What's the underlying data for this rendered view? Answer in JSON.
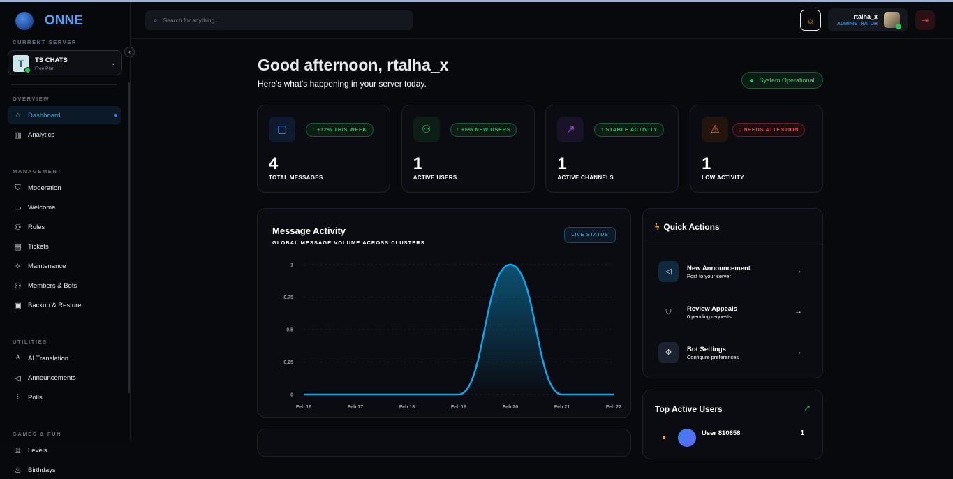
{
  "app": {
    "name": "ONNE"
  },
  "sidebar": {
    "current_server_label": "CURRENT SERVER",
    "server": {
      "name": "TS CHATS",
      "plan": "Free Plan",
      "avatar_letter": "T"
    },
    "sections": [
      {
        "label": "OVERVIEW",
        "items": [
          {
            "label": "Dashboard",
            "icon": "home-icon",
            "active": true
          },
          {
            "label": "Analytics",
            "icon": "bar-chart-icon"
          }
        ]
      },
      {
        "label": "MANAGEMENT",
        "items": [
          {
            "label": "Moderation",
            "icon": "shield-icon"
          },
          {
            "label": "Welcome",
            "icon": "message-icon"
          },
          {
            "label": "Roles",
            "icon": "user-cog-icon"
          },
          {
            "label": "Tickets",
            "icon": "ticket-icon"
          },
          {
            "label": "Maintenance",
            "icon": "sparkles-icon"
          },
          {
            "label": "Members & Bots",
            "icon": "users-icon"
          },
          {
            "label": "Backup & Restore",
            "icon": "archive-icon"
          }
        ]
      },
      {
        "label": "UTILITIES",
        "items": [
          {
            "label": "AI Translation",
            "icon": "translate-icon"
          },
          {
            "label": "Announcements",
            "icon": "megaphone-icon"
          },
          {
            "label": "Polls",
            "icon": "poll-icon"
          }
        ]
      },
      {
        "label": "GAMES & FUN",
        "items": [
          {
            "label": "Levels",
            "icon": "trophy-icon"
          },
          {
            "label": "Birthdays",
            "icon": "cake-icon"
          }
        ]
      }
    ]
  },
  "header": {
    "search_placeholder": "Search for anything...",
    "user": {
      "name": "rtalha_x",
      "role": "ADMINISTRATOR"
    }
  },
  "main": {
    "greeting": "Good afternoon, rtalha_x",
    "subtitle": "Here's what's happening in your server today.",
    "status": "System Operational",
    "stats": [
      {
        "value": "4",
        "label": "TOTAL MESSAGES",
        "badge": "↑ +12% THIS WEEK",
        "icon": "message-square-icon",
        "tone": "good",
        "color": "#3b82f6"
      },
      {
        "value": "1",
        "label": "ACTIVE USERS",
        "badge": "↑ +5% NEW USERS",
        "icon": "users-icon",
        "tone": "good",
        "color": "#22c55e"
      },
      {
        "value": "1",
        "label": "ACTIVE CHANNELS",
        "badge": "↑ STABLE ACTIVITY",
        "icon": "trending-up-icon",
        "tone": "good",
        "color": "#a855f7"
      },
      {
        "value": "1",
        "label": "LOW ACTIVITY",
        "badge": "↓ NEEDS ATTENTION",
        "icon": "alert-triangle-icon",
        "tone": "bad",
        "color": "#f97316"
      }
    ],
    "chart_panel": {
      "title": "Message Activity",
      "subtitle": "GLOBAL MESSAGE VOLUME ACROSS CLUSTERS",
      "live_label": "LIVE STATUS"
    },
    "quick_actions": {
      "title": "Quick Actions",
      "items": [
        {
          "title": "New Announcement",
          "desc": "Post to your server",
          "icon": "megaphone-icon"
        },
        {
          "title": "Review Appeals",
          "desc": "0 pending requests",
          "icon": "shield-icon"
        },
        {
          "title": "Bot Settings",
          "desc": "Configure preferences",
          "icon": "gear-icon"
        }
      ]
    },
    "top_users": {
      "title": "Top Active Users",
      "rows": [
        {
          "name": "User 810658",
          "count": "1"
        }
      ]
    }
  },
  "chart_data": {
    "type": "area",
    "categories": [
      "Feb 16",
      "Feb 17",
      "Feb 18",
      "Feb 19",
      "Feb 20",
      "Feb 21",
      "Feb 22"
    ],
    "values": [
      0,
      0,
      0,
      0,
      1,
      0,
      0
    ],
    "yticks": [
      "0",
      "0.25",
      "0.5",
      "0.75",
      "1"
    ],
    "ylim": [
      0,
      1
    ],
    "grid": true,
    "color": "#0ea5e9"
  }
}
